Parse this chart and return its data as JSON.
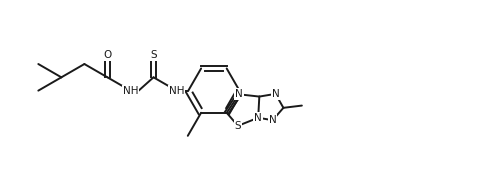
{
  "background_color": "#ffffff",
  "line_color": "#1a1a1a",
  "line_width": 1.4,
  "font_size": 7.5,
  "figsize": [
    4.86,
    1.7
  ],
  "dpi": 100,
  "xlim": [
    0,
    9.5
  ],
  "ylim": [
    0.0,
    3.2
  ]
}
